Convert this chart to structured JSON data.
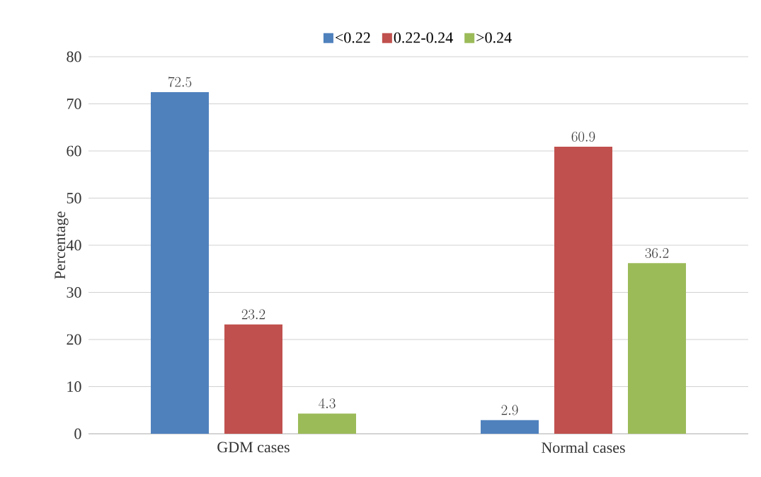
{
  "chart_data": {
    "type": "bar",
    "ylabel": "Percentage",
    "categories": [
      "GDM cases",
      "Normal cases"
    ],
    "series": [
      {
        "name": "<0.22",
        "color": "#4f81bd",
        "values": [
          72.5,
          2.9
        ]
      },
      {
        "name": "0.22-0.24",
        "color": "#c0504d",
        "values": [
          23.2,
          60.9
        ]
      },
      {
        "name": ">0.24",
        "color": "#9bbb59",
        "values": [
          4.3,
          36.2
        ]
      }
    ],
    "ylim": [
      0,
      80
    ],
    "yticks": [
      0,
      10,
      20,
      30,
      40,
      50,
      60,
      70,
      80
    ],
    "grid": "y",
    "legend": "top",
    "data_labels": true
  }
}
